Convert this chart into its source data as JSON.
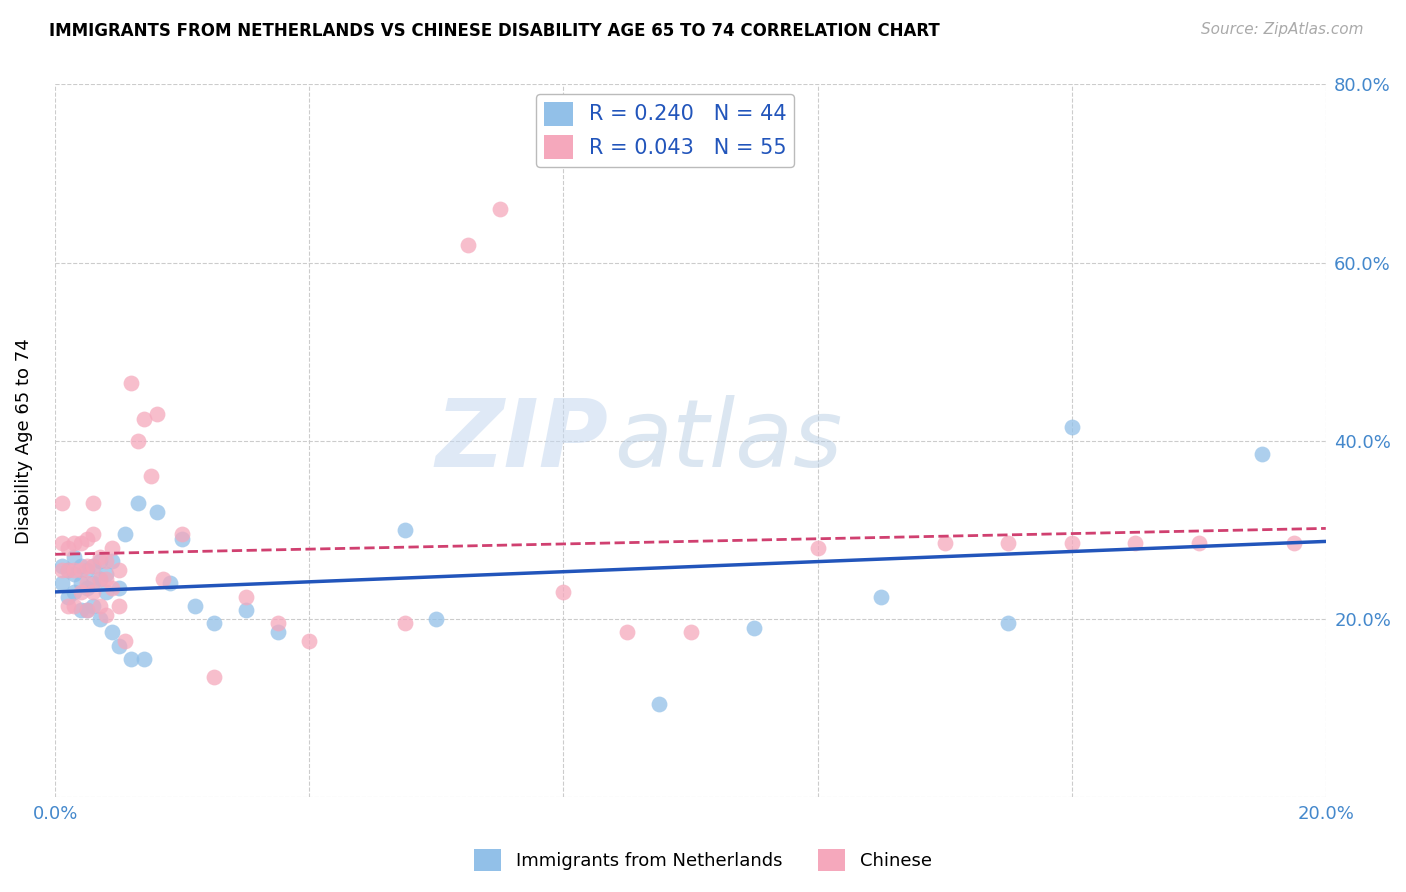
{
  "title": "IMMIGRANTS FROM NETHERLANDS VS CHINESE DISABILITY AGE 65 TO 74 CORRELATION CHART",
  "source": "Source: ZipAtlas.com",
  "xlabel_label": "Immigrants from Netherlands",
  "ylabel_label": "Disability Age 65 to 74",
  "xlim": [
    0.0,
    0.2
  ],
  "ylim": [
    0.0,
    0.8
  ],
  "xticks": [
    0.0,
    0.04,
    0.08,
    0.12,
    0.16,
    0.2
  ],
  "xtick_labels": [
    "0.0%",
    "",
    "",
    "",
    "",
    "20.0%"
  ],
  "yticks": [
    0.0,
    0.2,
    0.4,
    0.6,
    0.8
  ],
  "ytick_labels_right": [
    "",
    "20.0%",
    "40.0%",
    "60.0%",
    "80.0%"
  ],
  "blue_R": 0.24,
  "blue_N": 44,
  "pink_R": 0.043,
  "pink_N": 55,
  "blue_color": "#92c0e8",
  "pink_color": "#f5a8bc",
  "blue_line_color": "#2255bb",
  "pink_line_color": "#d04070",
  "watermark_zip": "ZIP",
  "watermark_atlas": "atlas",
  "blue_scatter_x": [
    0.001,
    0.001,
    0.002,
    0.002,
    0.003,
    0.003,
    0.003,
    0.004,
    0.004,
    0.004,
    0.005,
    0.005,
    0.005,
    0.006,
    0.006,
    0.006,
    0.007,
    0.007,
    0.007,
    0.008,
    0.008,
    0.009,
    0.009,
    0.01,
    0.01,
    0.011,
    0.012,
    0.013,
    0.014,
    0.016,
    0.018,
    0.02,
    0.022,
    0.025,
    0.03,
    0.035,
    0.055,
    0.06,
    0.095,
    0.11,
    0.13,
    0.15,
    0.16,
    0.19
  ],
  "blue_scatter_y": [
    0.26,
    0.24,
    0.255,
    0.225,
    0.27,
    0.25,
    0.23,
    0.26,
    0.24,
    0.21,
    0.255,
    0.235,
    0.21,
    0.26,
    0.24,
    0.215,
    0.265,
    0.245,
    0.2,
    0.25,
    0.23,
    0.265,
    0.185,
    0.235,
    0.17,
    0.295,
    0.155,
    0.33,
    0.155,
    0.32,
    0.24,
    0.29,
    0.215,
    0.195,
    0.21,
    0.185,
    0.3,
    0.2,
    0.105,
    0.19,
    0.225,
    0.195,
    0.415,
    0.385
  ],
  "pink_scatter_x": [
    0.001,
    0.001,
    0.001,
    0.002,
    0.002,
    0.002,
    0.003,
    0.003,
    0.003,
    0.004,
    0.004,
    0.004,
    0.005,
    0.005,
    0.005,
    0.005,
    0.006,
    0.006,
    0.006,
    0.006,
    0.007,
    0.007,
    0.007,
    0.008,
    0.008,
    0.008,
    0.009,
    0.009,
    0.01,
    0.01,
    0.011,
    0.012,
    0.013,
    0.014,
    0.015,
    0.016,
    0.017,
    0.02,
    0.025,
    0.03,
    0.035,
    0.04,
    0.055,
    0.065,
    0.07,
    0.08,
    0.09,
    0.1,
    0.12,
    0.14,
    0.15,
    0.16,
    0.17,
    0.18,
    0.195
  ],
  "pink_scatter_y": [
    0.33,
    0.285,
    0.255,
    0.28,
    0.255,
    0.215,
    0.285,
    0.255,
    0.215,
    0.285,
    0.255,
    0.23,
    0.29,
    0.26,
    0.24,
    0.21,
    0.33,
    0.295,
    0.26,
    0.23,
    0.27,
    0.245,
    0.215,
    0.265,
    0.245,
    0.205,
    0.28,
    0.235,
    0.255,
    0.215,
    0.175,
    0.465,
    0.4,
    0.425,
    0.36,
    0.43,
    0.245,
    0.295,
    0.135,
    0.225,
    0.195,
    0.175,
    0.195,
    0.62,
    0.66,
    0.23,
    0.185,
    0.185,
    0.28,
    0.285,
    0.285,
    0.285,
    0.285,
    0.285,
    0.285
  ]
}
